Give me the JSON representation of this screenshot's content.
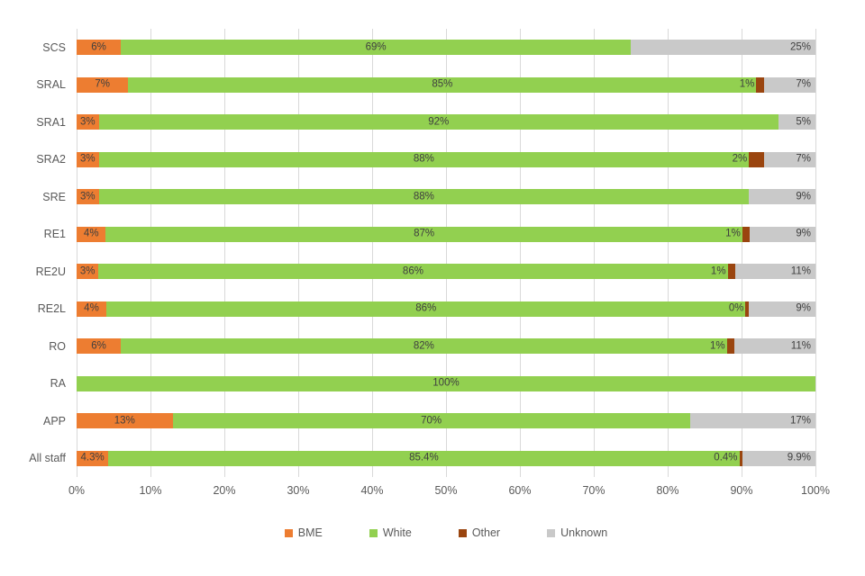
{
  "chart_data": {
    "type": "bar",
    "variant": "stacked-horizontal",
    "title": "",
    "categories": [
      "SCS",
      "SRAL",
      "SRA1",
      "SRA2",
      "SRE",
      "RE1",
      "RE2U",
      "RE2L",
      "RO",
      "RA",
      "APP",
      "All staff"
    ],
    "series": [
      {
        "name": "BME",
        "color": "#ED7D31",
        "values": [
          6,
          7,
          3,
          3,
          3,
          4,
          3,
          4,
          6,
          0,
          13,
          4.3
        ],
        "labels": [
          "6%",
          "7%",
          "3%",
          "3%",
          "3%",
          "4%",
          "3%",
          "4%",
          "6%",
          "",
          "13%",
          "4.3%"
        ]
      },
      {
        "name": "White",
        "color": "#92D050",
        "values": [
          69,
          85,
          92,
          88,
          88,
          87,
          86,
          86,
          82,
          100,
          70,
          85.4
        ],
        "labels": [
          "69%",
          "85%",
          "92%",
          "88%",
          "88%",
          "87%",
          "86%",
          "86%",
          "82%",
          "100%",
          "70%",
          "85.4%"
        ]
      },
      {
        "name": "Other",
        "color": "#9A450F",
        "values": [
          0,
          1,
          0,
          2,
          0,
          1,
          1,
          0.4,
          1,
          0,
          0,
          0.4
        ],
        "labels": [
          "",
          "1%",
          "",
          "2%",
          "",
          "1%",
          "1%",
          "0%",
          "1%",
          "",
          "",
          "0.4%"
        ]
      },
      {
        "name": "Unknown",
        "color": "#C9C9C9",
        "values": [
          25,
          7,
          5,
          7,
          9,
          9,
          11,
          9,
          11,
          0,
          17,
          9.9
        ],
        "labels": [
          "25%",
          "7%",
          "5%",
          "7%",
          "9%",
          "9%",
          "11%",
          "9%",
          "11%",
          "",
          "17%",
          "9.9%"
        ]
      }
    ],
    "x_ticks": [
      "0%",
      "10%",
      "20%",
      "30%",
      "40%",
      "50%",
      "60%",
      "70%",
      "80%",
      "90%",
      "100%"
    ],
    "xlim": [
      0,
      100
    ],
    "gridlines": "vertical",
    "legend": [
      "BME",
      "White",
      "Other",
      "Unknown"
    ],
    "legend_position": "bottom"
  },
  "colors": {
    "grid": "#D9D9D9",
    "axis_text": "#595959",
    "bar_label_text": "#3F3F3F",
    "legend_text": "#595959",
    "background": "#FFFFFF"
  }
}
